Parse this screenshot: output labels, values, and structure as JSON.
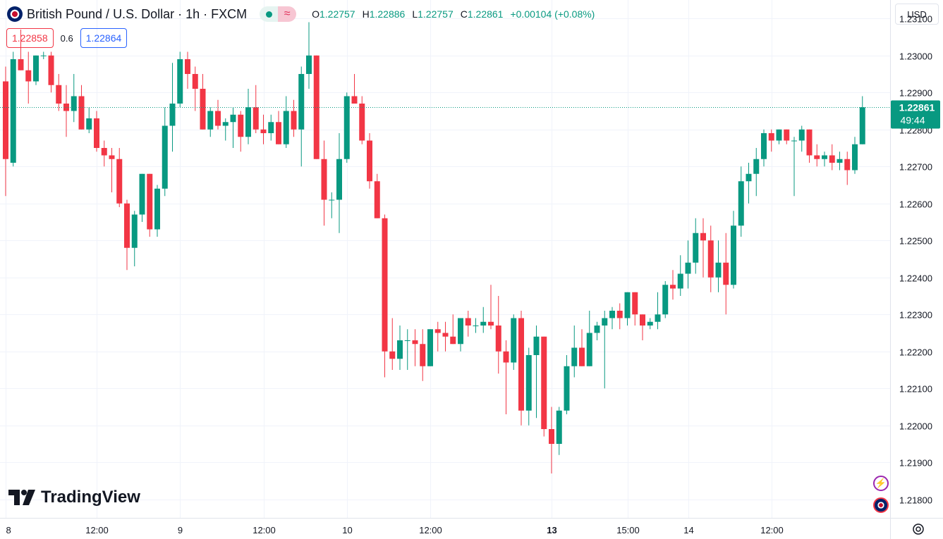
{
  "header": {
    "title": "British Pound / U.S. Dollar · 1h · FXCM",
    "ohlc": [
      {
        "key": "O",
        "value": "1.22757"
      },
      {
        "key": "H",
        "value": "1.22886"
      },
      {
        "key": "L",
        "value": "1.22757"
      },
      {
        "key": "C",
        "value": "1.22861"
      }
    ],
    "change": "+0.00104 (+0.08%)"
  },
  "quote": {
    "sell": "1.22858",
    "spread": "0.6",
    "buy": "1.22864"
  },
  "currency_button": "USD",
  "brand": "TradingView",
  "price_label": {
    "price": "1.22861",
    "countdown": "49:44"
  },
  "colors": {
    "up": "#089981",
    "down": "#f23645",
    "text": "#131722",
    "grid": "#f0f3fa"
  },
  "chart_data": {
    "type": "candlestick",
    "ylim": [
      1.2175,
      1.2315
    ],
    "y_ticks": [
      "1.23100",
      "1.23000",
      "1.22900",
      "1.22800",
      "1.22700",
      "1.22600",
      "1.22500",
      "1.22400",
      "1.22300",
      "1.22200",
      "1.22100",
      "1.22000",
      "1.21900",
      "1.21800"
    ],
    "x_ticks": [
      {
        "label": "8",
        "index": 0,
        "bold": false
      },
      {
        "label": "12:00",
        "index": 12,
        "bold": false
      },
      {
        "label": "9",
        "index": 23,
        "bold": false
      },
      {
        "label": "12:00",
        "index": 34,
        "bold": false
      },
      {
        "label": "10",
        "index": 45,
        "bold": false
      },
      {
        "label": "12:00",
        "index": 56,
        "bold": false
      },
      {
        "label": "13",
        "index": 72,
        "bold": true
      },
      {
        "label": "15:00",
        "index": 82,
        "bold": false
      },
      {
        "label": "14",
        "index": 90,
        "bold": false
      },
      {
        "label": "12:00",
        "index": 101,
        "bold": false
      }
    ],
    "last_price": 1.22861,
    "candles": [
      {
        "o": 1.2293,
        "h": 1.2297,
        "l": 1.2262,
        "c": 1.2272
      },
      {
        "o": 1.2271,
        "h": 1.2301,
        "l": 1.227,
        "c": 1.2299
      },
      {
        "o": 1.2299,
        "h": 1.2307,
        "l": 1.2296,
        "c": 1.2296
      },
      {
        "o": 1.2296,
        "h": 1.2301,
        "l": 1.2287,
        "c": 1.2293
      },
      {
        "o": 1.2293,
        "h": 1.23,
        "l": 1.2292,
        "c": 1.23
      },
      {
        "o": 1.23,
        "h": 1.2301,
        "l": 1.2299,
        "c": 1.23
      },
      {
        "o": 1.23,
        "h": 1.2301,
        "l": 1.229,
        "c": 1.2292
      },
      {
        "o": 1.2292,
        "h": 1.2295,
        "l": 1.2285,
        "c": 1.2287
      },
      {
        "o": 1.2287,
        "h": 1.2292,
        "l": 1.2278,
        "c": 1.2285
      },
      {
        "o": 1.2285,
        "h": 1.2295,
        "l": 1.2282,
        "c": 1.2289
      },
      {
        "o": 1.2289,
        "h": 1.2292,
        "l": 1.228,
        "c": 1.228
      },
      {
        "o": 1.228,
        "h": 1.2286,
        "l": 1.2279,
        "c": 1.2283
      },
      {
        "o": 1.2283,
        "h": 1.2285,
        "l": 1.2274,
        "c": 1.2275
      },
      {
        "o": 1.2275,
        "h": 1.2277,
        "l": 1.227,
        "c": 1.2273
      },
      {
        "o": 1.2273,
        "h": 1.2275,
        "l": 1.2263,
        "c": 1.2272
      },
      {
        "o": 1.2272,
        "h": 1.2275,
        "l": 1.2259,
        "c": 1.226
      },
      {
        "o": 1.226,
        "h": 1.2261,
        "l": 1.2242,
        "c": 1.2248
      },
      {
        "o": 1.2248,
        "h": 1.2258,
        "l": 1.2243,
        "c": 1.2257
      },
      {
        "o": 1.2257,
        "h": 1.2268,
        "l": 1.2255,
        "c": 1.2268
      },
      {
        "o": 1.2268,
        "h": 1.2268,
        "l": 1.2251,
        "c": 1.2253
      },
      {
        "o": 1.2253,
        "h": 1.2265,
        "l": 1.2251,
        "c": 1.2264
      },
      {
        "o": 1.2264,
        "h": 1.2286,
        "l": 1.2262,
        "c": 1.2281
      },
      {
        "o": 1.2281,
        "h": 1.2298,
        "l": 1.2274,
        "c": 1.2287
      },
      {
        "o": 1.2287,
        "h": 1.2301,
        "l": 1.2286,
        "c": 1.2299
      },
      {
        "o": 1.2299,
        "h": 1.2301,
        "l": 1.2291,
        "c": 1.2295
      },
      {
        "o": 1.2295,
        "h": 1.2297,
        "l": 1.2285,
        "c": 1.2291
      },
      {
        "o": 1.2291,
        "h": 1.2295,
        "l": 1.228,
        "c": 1.228
      },
      {
        "o": 1.228,
        "h": 1.2286,
        "l": 1.2278,
        "c": 1.2285
      },
      {
        "o": 1.2285,
        "h": 1.2288,
        "l": 1.228,
        "c": 1.2281
      },
      {
        "o": 1.2281,
        "h": 1.2283,
        "l": 1.2277,
        "c": 1.2282
      },
      {
        "o": 1.2282,
        "h": 1.2286,
        "l": 1.2275,
        "c": 1.2284
      },
      {
        "o": 1.2284,
        "h": 1.2285,
        "l": 1.2274,
        "c": 1.2278
      },
      {
        "o": 1.2278,
        "h": 1.2291,
        "l": 1.2276,
        "c": 1.2286
      },
      {
        "o": 1.2286,
        "h": 1.2292,
        "l": 1.2279,
        "c": 1.228
      },
      {
        "o": 1.228,
        "h": 1.2284,
        "l": 1.2276,
        "c": 1.2279
      },
      {
        "o": 1.2279,
        "h": 1.2284,
        "l": 1.2277,
        "c": 1.2282
      },
      {
        "o": 1.2282,
        "h": 1.2285,
        "l": 1.2276,
        "c": 1.2276
      },
      {
        "o": 1.2276,
        "h": 1.2289,
        "l": 1.2275,
        "c": 1.2285
      },
      {
        "o": 1.2285,
        "h": 1.2288,
        "l": 1.2278,
        "c": 1.228
      },
      {
        "o": 1.228,
        "h": 1.2297,
        "l": 1.227,
        "c": 1.2295
      },
      {
        "o": 1.2295,
        "h": 1.2309,
        "l": 1.2291,
        "c": 1.23
      },
      {
        "o": 1.23,
        "h": 1.23,
        "l": 1.2272,
        "c": 1.2272
      },
      {
        "o": 1.2272,
        "h": 1.2277,
        "l": 1.2254,
        "c": 1.2261
      },
      {
        "o": 1.2261,
        "h": 1.2263,
        "l": 1.2256,
        "c": 1.2261
      },
      {
        "o": 1.2261,
        "h": 1.2279,
        "l": 1.2252,
        "c": 1.2272
      },
      {
        "o": 1.2272,
        "h": 1.229,
        "l": 1.2271,
        "c": 1.2289
      },
      {
        "o": 1.2289,
        "h": 1.2295,
        "l": 1.2287,
        "c": 1.2287
      },
      {
        "o": 1.2287,
        "h": 1.2289,
        "l": 1.2276,
        "c": 1.2277
      },
      {
        "o": 1.2277,
        "h": 1.2279,
        "l": 1.2264,
        "c": 1.2266
      },
      {
        "o": 1.2266,
        "h": 1.2268,
        "l": 1.2256,
        "c": 1.2256
      },
      {
        "o": 1.2256,
        "h": 1.2257,
        "l": 1.2213,
        "c": 1.222
      },
      {
        "o": 1.222,
        "h": 1.2229,
        "l": 1.2215,
        "c": 1.2218
      },
      {
        "o": 1.2218,
        "h": 1.2227,
        "l": 1.2215,
        "c": 1.2223
      },
      {
        "o": 1.2223,
        "h": 1.2226,
        "l": 1.2215,
        "c": 1.2223
      },
      {
        "o": 1.2223,
        "h": 1.2226,
        "l": 1.2216,
        "c": 1.2222
      },
      {
        "o": 1.2222,
        "h": 1.2226,
        "l": 1.2212,
        "c": 1.2216
      },
      {
        "o": 1.2216,
        "h": 1.2226,
        "l": 1.2216,
        "c": 1.2226
      },
      {
        "o": 1.2226,
        "h": 1.2228,
        "l": 1.222,
        "c": 1.2225
      },
      {
        "o": 1.2225,
        "h": 1.2228,
        "l": 1.222,
        "c": 1.2224
      },
      {
        "o": 1.2224,
        "h": 1.223,
        "l": 1.2222,
        "c": 1.2222
      },
      {
        "o": 1.2222,
        "h": 1.2229,
        "l": 1.222,
        "c": 1.2229
      },
      {
        "o": 1.2229,
        "h": 1.2231,
        "l": 1.2224,
        "c": 1.2227
      },
      {
        "o": 1.2227,
        "h": 1.2229,
        "l": 1.2225,
        "c": 1.2227
      },
      {
        "o": 1.2227,
        "h": 1.2232,
        "l": 1.2225,
        "c": 1.2228
      },
      {
        "o": 1.2228,
        "h": 1.2238,
        "l": 1.2226,
        "c": 1.2227
      },
      {
        "o": 1.2227,
        "h": 1.2235,
        "l": 1.2214,
        "c": 1.222
      },
      {
        "o": 1.222,
        "h": 1.2223,
        "l": 1.2203,
        "c": 1.2217
      },
      {
        "o": 1.2217,
        "h": 1.223,
        "l": 1.2215,
        "c": 1.2229
      },
      {
        "o": 1.2229,
        "h": 1.2231,
        "l": 1.22,
        "c": 1.2204
      },
      {
        "o": 1.2204,
        "h": 1.2221,
        "l": 1.22,
        "c": 1.2219
      },
      {
        "o": 1.2219,
        "h": 1.2227,
        "l": 1.2202,
        "c": 1.2224
      },
      {
        "o": 1.2224,
        "h": 1.2224,
        "l": 1.2197,
        "c": 1.2199
      },
      {
        "o": 1.2199,
        "h": 1.2205,
        "l": 1.2187,
        "c": 1.2195
      },
      {
        "o": 1.2195,
        "h": 1.2205,
        "l": 1.2192,
        "c": 1.2204
      },
      {
        "o": 1.2204,
        "h": 1.2219,
        "l": 1.2203,
        "c": 1.2216
      },
      {
        "o": 1.2216,
        "h": 1.2227,
        "l": 1.2213,
        "c": 1.2221
      },
      {
        "o": 1.2221,
        "h": 1.2226,
        "l": 1.2216,
        "c": 1.2216
      },
      {
        "o": 1.2216,
        "h": 1.2231,
        "l": 1.2216,
        "c": 1.2225
      },
      {
        "o": 1.2225,
        "h": 1.2228,
        "l": 1.2223,
        "c": 1.2227
      },
      {
        "o": 1.2227,
        "h": 1.2231,
        "l": 1.221,
        "c": 1.2229
      },
      {
        "o": 1.2229,
        "h": 1.2232,
        "l": 1.2226,
        "c": 1.2231
      },
      {
        "o": 1.2231,
        "h": 1.2233,
        "l": 1.2226,
        "c": 1.2229
      },
      {
        "o": 1.2229,
        "h": 1.2236,
        "l": 1.2227,
        "c": 1.2236
      },
      {
        "o": 1.2236,
        "h": 1.2236,
        "l": 1.2227,
        "c": 1.223
      },
      {
        "o": 1.223,
        "h": 1.223,
        "l": 1.2223,
        "c": 1.2227
      },
      {
        "o": 1.2227,
        "h": 1.2229,
        "l": 1.2226,
        "c": 1.2228
      },
      {
        "o": 1.2228,
        "h": 1.2236,
        "l": 1.2226,
        "c": 1.223
      },
      {
        "o": 1.223,
        "h": 1.2239,
        "l": 1.2229,
        "c": 1.2238
      },
      {
        "o": 1.2238,
        "h": 1.2242,
        "l": 1.2234,
        "c": 1.2237
      },
      {
        "o": 1.2237,
        "h": 1.2246,
        "l": 1.2235,
        "c": 1.2241
      },
      {
        "o": 1.2241,
        "h": 1.225,
        "l": 1.2237,
        "c": 1.2244
      },
      {
        "o": 1.2244,
        "h": 1.2256,
        "l": 1.2241,
        "c": 1.2252
      },
      {
        "o": 1.2252,
        "h": 1.2256,
        "l": 1.224,
        "c": 1.225
      },
      {
        "o": 1.225,
        "h": 1.2254,
        "l": 1.2236,
        "c": 1.224
      },
      {
        "o": 1.224,
        "h": 1.225,
        "l": 1.2236,
        "c": 1.2244
      },
      {
        "o": 1.2244,
        "h": 1.2252,
        "l": 1.223,
        "c": 1.2238
      },
      {
        "o": 1.2238,
        "h": 1.2258,
        "l": 1.2237,
        "c": 1.2254
      },
      {
        "o": 1.2254,
        "h": 1.227,
        "l": 1.2251,
        "c": 1.2266
      },
      {
        "o": 1.2266,
        "h": 1.2271,
        "l": 1.226,
        "c": 1.2268
      },
      {
        "o": 1.2268,
        "h": 1.2275,
        "l": 1.2262,
        "c": 1.2272
      },
      {
        "o": 1.2272,
        "h": 1.228,
        "l": 1.227,
        "c": 1.2279
      },
      {
        "o": 1.2279,
        "h": 1.228,
        "l": 1.2274,
        "c": 1.2277
      },
      {
        "o": 1.2277,
        "h": 1.228,
        "l": 1.2276,
        "c": 1.228
      },
      {
        "o": 1.228,
        "h": 1.228,
        "l": 1.2276,
        "c": 1.2277
      },
      {
        "o": 1.2277,
        "h": 1.2278,
        "l": 1.2262,
        "c": 1.2277
      },
      {
        "o": 1.2277,
        "h": 1.2281,
        "l": 1.2274,
        "c": 1.228
      },
      {
        "o": 1.228,
        "h": 1.228,
        "l": 1.2271,
        "c": 1.2273
      },
      {
        "o": 1.2273,
        "h": 1.2276,
        "l": 1.227,
        "c": 1.2272
      },
      {
        "o": 1.2272,
        "h": 1.2274,
        "l": 1.227,
        "c": 1.2273
      },
      {
        "o": 1.2273,
        "h": 1.2276,
        "l": 1.2269,
        "c": 1.2271
      },
      {
        "o": 1.2271,
        "h": 1.2274,
        "l": 1.2269,
        "c": 1.2272
      },
      {
        "o": 1.2272,
        "h": 1.2274,
        "l": 1.2265,
        "c": 1.2269
      },
      {
        "o": 1.2269,
        "h": 1.2278,
        "l": 1.2268,
        "c": 1.2276
      },
      {
        "o": 1.2276,
        "h": 1.2289,
        "l": 1.2276,
        "c": 1.2286
      }
    ]
  }
}
